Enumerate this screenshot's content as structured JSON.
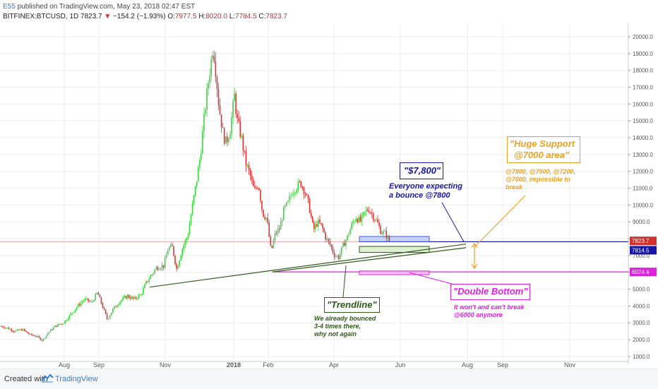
{
  "header": {
    "user": "E55",
    "published": " published on TradingView.com, May 23, 2018 02:47 EST",
    "symbol": "BITFINEX:BTCUSD, 1D",
    "last": "7823.7",
    "change": "−154.2 (−1.93%)",
    "o_label": "O:",
    "o_val": "7977.5",
    "h_label": "H:",
    "h_val": "8020.0",
    "l_label": "L:",
    "l_val": "7784.5",
    "c_label": "C:",
    "c_val": "7823.7"
  },
  "footer": {
    "created": "Created with",
    "brand": "TradingView"
  },
  "colors": {
    "up": "#3fd13f",
    "down": "#e03131",
    "blue": "#1616a8",
    "orange": "#f0a020",
    "magenta": "#e020e0",
    "green_dark": "#2d5a16"
  },
  "annotations": {
    "level_7800_title": "\"$7,800\"",
    "level_7800_text1": "Everyone expecting",
    "level_7800_text2": "a bounce @7800",
    "support_title1": "\"Huge Support",
    "support_title2": "@7000 area\"",
    "support_text1": "@7800, @7500, @7200,",
    "support_text2": "@7000, impossible to",
    "support_text3": "break",
    "trend_title": "\"Trendline\"",
    "trend_text1": "We already bounced",
    "trend_text2": "3-4 times there,",
    "trend_text3": "why not again",
    "double_title": "\"Double Bottom\"",
    "double_text1": "It won't and can't break",
    "double_text2": "@6000 anymore"
  },
  "chart_data": {
    "type": "candlestick",
    "x_labels": [
      "Aug",
      "Sep",
      "Nov",
      "2018",
      "Feb",
      "Apr",
      "Jun",
      "Aug",
      "Sep",
      "Nov"
    ],
    "y_ticks": [
      1000,
      2000,
      3000,
      4000,
      5000,
      6000,
      7000,
      8000,
      9000,
      10000,
      11000,
      12000,
      13000,
      14000,
      15000,
      16000,
      17000,
      18000,
      19000,
      20000
    ],
    "ylim": [
      700,
      20800
    ],
    "price_tags": [
      {
        "value": 7823.7,
        "label": "7823.7",
        "color": "#d0312d"
      },
      {
        "value": 7814.5,
        "label": "7814.5",
        "color": "#1616a8"
      },
      {
        "value": 6024.4,
        "label": "6024.4",
        "color": "#e020e0"
      }
    ],
    "horizontal_lines": [
      {
        "value": 7814.5,
        "color": "#1616a8"
      },
      {
        "value": 6024.4,
        "color": "#e020e0"
      }
    ],
    "price_path": [
      [
        0,
        2800
      ],
      [
        10,
        2700
      ],
      [
        20,
        2500
      ],
      [
        32,
        2600
      ],
      [
        42,
        2300
      ],
      [
        52,
        2200
      ],
      [
        60,
        1950
      ],
      [
        68,
        2400
      ],
      [
        78,
        2800
      ],
      [
        90,
        3000
      ],
      [
        100,
        3500
      ],
      [
        110,
        4000
      ],
      [
        120,
        4400
      ],
      [
        130,
        4200
      ],
      [
        138,
        4800
      ],
      [
        145,
        4000
      ],
      [
        152,
        3200
      ],
      [
        160,
        3800
      ],
      [
        170,
        4300
      ],
      [
        180,
        4600
      ],
      [
        190,
        4400
      ],
      [
        200,
        4700
      ],
      [
        206,
        5300
      ],
      [
        212,
        5700
      ],
      [
        222,
        6300
      ],
      [
        232,
        6400
      ],
      [
        238,
        7400
      ],
      [
        244,
        7500
      ],
      [
        250,
        6200
      ],
      [
        258,
        7400
      ],
      [
        266,
        8200
      ],
      [
        272,
        9800
      ],
      [
        278,
        11300
      ],
      [
        284,
        13000
      ],
      [
        290,
        15500
      ],
      [
        296,
        17600
      ],
      [
        302,
        19500
      ],
      [
        306,
        17800
      ],
      [
        310,
        15900
      ],
      [
        316,
        14200
      ],
      [
        320,
        13700
      ],
      [
        326,
        14500
      ],
      [
        332,
        16500
      ],
      [
        336,
        15000
      ],
      [
        342,
        14000
      ],
      [
        348,
        12500
      ],
      [
        354,
        11800
      ],
      [
        360,
        10800
      ],
      [
        366,
        11300
      ],
      [
        372,
        9500
      ],
      [
        378,
        9200
      ],
      [
        384,
        7200
      ],
      [
        390,
        8300
      ],
      [
        396,
        8600
      ],
      [
        402,
        9700
      ],
      [
        408,
        10100
      ],
      [
        414,
        10800
      ],
      [
        420,
        11100
      ],
      [
        426,
        11300
      ],
      [
        432,
        10800
      ],
      [
        438,
        9900
      ],
      [
        444,
        8500
      ],
      [
        450,
        9000
      ],
      [
        456,
        8700
      ],
      [
        462,
        8000
      ],
      [
        468,
        7600
      ],
      [
        474,
        7000
      ],
      [
        480,
        6900
      ],
      [
        486,
        7600
      ],
      [
        492,
        8100
      ],
      [
        498,
        8800
      ],
      [
        504,
        9300
      ],
      [
        510,
        9000
      ],
      [
        516,
        9500
      ],
      [
        522,
        9800
      ],
      [
        528,
        9400
      ],
      [
        534,
        9000
      ],
      [
        540,
        8400
      ],
      [
        546,
        8300
      ],
      [
        552,
        7820
      ]
    ],
    "boxes": [
      {
        "x1": 509,
        "x2": 608,
        "y1": 8130,
        "y2": 7820,
        "fill": "#b8c8f4",
        "stroke": "#4a5ae6"
      },
      {
        "x1": 509,
        "x2": 608,
        "y1": 7540,
        "y2": 7180,
        "fill": "#d4ecc6",
        "stroke": "#2d5a16"
      },
      {
        "x1": 509,
        "x2": 608,
        "y1": 6080,
        "y2": 5860,
        "fill": "#f6b8f6",
        "stroke": "#e020e0"
      }
    ],
    "trendlines": [
      {
        "x1": 212,
        "v1": 5120,
        "x2": 660,
        "v2": 7680,
        "color": "#2d5a16"
      },
      {
        "x1": 386,
        "v1": 6024.4,
        "x2": 660,
        "v2": 7460,
        "color": "#2d5a16"
      }
    ]
  }
}
